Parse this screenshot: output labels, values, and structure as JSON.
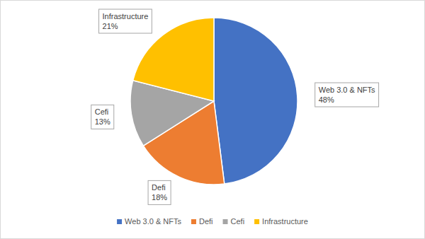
{
  "chart_data": {
    "type": "pie",
    "categories": [
      "Web 3.0 & NFTs",
      "Defi",
      "Cefi",
      "Infrastructure"
    ],
    "values": [
      48,
      18,
      13,
      21
    ],
    "value_labels": [
      "48%",
      "18%",
      "13%",
      "21%"
    ],
    "colors": [
      "#4472c4",
      "#ed7d31",
      "#a5a5a5",
      "#ffc000"
    ],
    "data_labels": true,
    "legend": "bottom"
  }
}
